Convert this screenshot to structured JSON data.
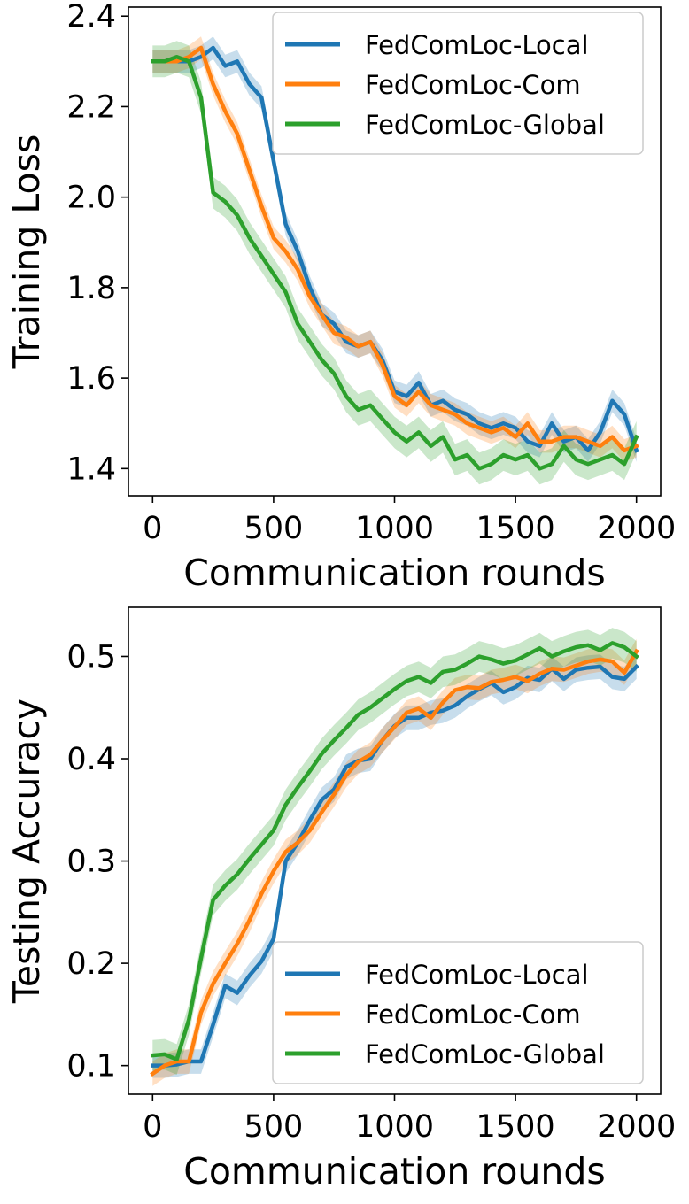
{
  "chart_data": [
    {
      "type": "line",
      "title": "",
      "xlabel": "Communication rounds",
      "ylabel": "Training Loss",
      "xlim": [
        -100,
        2100
      ],
      "ylim": [
        1.34,
        2.42
      ],
      "xticks": [
        0,
        500,
        1000,
        1500,
        2000
      ],
      "xtick_labels": [
        "0",
        "500",
        "1000",
        "1500",
        "2000"
      ],
      "yticks": [
        1.4,
        1.6,
        1.8,
        2.0,
        2.2,
        2.4
      ],
      "ytick_labels": [
        "1.4",
        "1.6",
        "1.8",
        "2.0",
        "2.2",
        "2.4"
      ],
      "grid": false,
      "legend_position": "top-right",
      "series": [
        {
          "name": "FedComLoc-Local",
          "color": "#1f77b4",
          "band": 0.025,
          "x": [
            0,
            50,
            100,
            150,
            200,
            250,
            300,
            350,
            400,
            450,
            500,
            550,
            600,
            650,
            700,
            750,
            800,
            850,
            900,
            950,
            1000,
            1050,
            1100,
            1150,
            1200,
            1250,
            1300,
            1350,
            1400,
            1450,
            1500,
            1550,
            1600,
            1650,
            1700,
            1750,
            1800,
            1850,
            1900,
            1950,
            2000
          ],
          "y": [
            2.3,
            2.3,
            2.3,
            2.3,
            2.31,
            2.33,
            2.29,
            2.3,
            2.25,
            2.22,
            2.08,
            1.94,
            1.88,
            1.8,
            1.74,
            1.72,
            1.68,
            1.67,
            1.68,
            1.64,
            1.57,
            1.56,
            1.59,
            1.54,
            1.55,
            1.53,
            1.52,
            1.5,
            1.49,
            1.5,
            1.49,
            1.46,
            1.45,
            1.5,
            1.46,
            1.47,
            1.44,
            1.48,
            1.55,
            1.52,
            1.44
          ]
        },
        {
          "name": "FedComLoc-Com",
          "color": "#ff7f0e",
          "band": 0.025,
          "x": [
            0,
            50,
            100,
            150,
            200,
            250,
            300,
            350,
            400,
            450,
            500,
            550,
            600,
            650,
            700,
            750,
            800,
            850,
            900,
            950,
            1000,
            1050,
            1100,
            1150,
            1200,
            1250,
            1300,
            1350,
            1400,
            1450,
            1500,
            1550,
            1600,
            1650,
            1700,
            1750,
            1800,
            1850,
            1900,
            1950,
            2000
          ],
          "y": [
            2.3,
            2.3,
            2.3,
            2.31,
            2.33,
            2.25,
            2.19,
            2.14,
            2.06,
            1.98,
            1.91,
            1.88,
            1.84,
            1.78,
            1.74,
            1.7,
            1.69,
            1.67,
            1.68,
            1.63,
            1.56,
            1.54,
            1.57,
            1.54,
            1.53,
            1.52,
            1.5,
            1.49,
            1.48,
            1.49,
            1.47,
            1.5,
            1.46,
            1.46,
            1.47,
            1.47,
            1.46,
            1.45,
            1.47,
            1.44,
            1.45
          ]
        },
        {
          "name": "FedComLoc-Global",
          "color": "#2ca02c",
          "band": 0.035,
          "x": [
            0,
            50,
            100,
            150,
            200,
            250,
            300,
            350,
            400,
            450,
            500,
            550,
            600,
            650,
            700,
            750,
            800,
            850,
            900,
            950,
            1000,
            1050,
            1100,
            1150,
            1200,
            1250,
            1300,
            1350,
            1400,
            1450,
            1500,
            1550,
            1600,
            1650,
            1700,
            1750,
            1800,
            1850,
            1900,
            1950,
            2000
          ],
          "y": [
            2.3,
            2.3,
            2.31,
            2.3,
            2.22,
            2.01,
            1.99,
            1.96,
            1.91,
            1.87,
            1.83,
            1.79,
            1.72,
            1.68,
            1.64,
            1.61,
            1.56,
            1.53,
            1.54,
            1.51,
            1.48,
            1.46,
            1.48,
            1.45,
            1.47,
            1.42,
            1.43,
            1.4,
            1.41,
            1.43,
            1.42,
            1.43,
            1.4,
            1.41,
            1.45,
            1.42,
            1.41,
            1.42,
            1.43,
            1.41,
            1.47
          ]
        }
      ]
    },
    {
      "type": "line",
      "title": "",
      "xlabel": "Communication rounds",
      "ylabel": "Testing Accuracy",
      "xlim": [
        -100,
        2100
      ],
      "ylim": [
        0.072,
        0.548
      ],
      "xticks": [
        0,
        500,
        1000,
        1500,
        2000
      ],
      "xtick_labels": [
        "0",
        "500",
        "1000",
        "1500",
        "2000"
      ],
      "yticks": [
        0.1,
        0.2,
        0.3,
        0.4,
        0.5
      ],
      "ytick_labels": [
        "0.1",
        "0.2",
        "0.3",
        "0.4",
        "0.5"
      ],
      "grid": false,
      "legend_position": "bottom-right",
      "series": [
        {
          "name": "FedComLoc-Local",
          "color": "#1f77b4",
          "band": 0.012,
          "x": [
            0,
            50,
            100,
            150,
            200,
            250,
            300,
            350,
            400,
            450,
            500,
            550,
            600,
            650,
            700,
            750,
            800,
            850,
            900,
            950,
            1000,
            1050,
            1100,
            1150,
            1200,
            1250,
            1300,
            1350,
            1400,
            1450,
            1500,
            1550,
            1600,
            1650,
            1700,
            1750,
            1800,
            1850,
            1900,
            1950,
            2000
          ],
          "y": [
            0.1,
            0.1,
            0.101,
            0.104,
            0.104,
            0.14,
            0.178,
            0.171,
            0.188,
            0.202,
            0.224,
            0.3,
            0.318,
            0.34,
            0.36,
            0.37,
            0.392,
            0.398,
            0.4,
            0.418,
            0.432,
            0.44,
            0.44,
            0.445,
            0.447,
            0.452,
            0.461,
            0.468,
            0.474,
            0.465,
            0.47,
            0.479,
            0.477,
            0.488,
            0.478,
            0.487,
            0.489,
            0.49,
            0.48,
            0.478,
            0.49
          ]
        },
        {
          "name": "FedComLoc-Com",
          "color": "#ff7f0e",
          "band": 0.012,
          "x": [
            0,
            50,
            100,
            150,
            200,
            250,
            300,
            350,
            400,
            450,
            500,
            550,
            600,
            650,
            700,
            750,
            800,
            850,
            900,
            950,
            1000,
            1050,
            1100,
            1150,
            1200,
            1250,
            1300,
            1350,
            1400,
            1450,
            1500,
            1550,
            1600,
            1650,
            1700,
            1750,
            1800,
            1850,
            1900,
            1950,
            2000
          ],
          "y": [
            0.092,
            0.1,
            0.104,
            0.104,
            0.152,
            0.18,
            0.2,
            0.219,
            0.242,
            0.268,
            0.29,
            0.309,
            0.318,
            0.33,
            0.348,
            0.365,
            0.384,
            0.397,
            0.404,
            0.418,
            0.431,
            0.445,
            0.449,
            0.44,
            0.455,
            0.467,
            0.47,
            0.469,
            0.475,
            0.477,
            0.48,
            0.476,
            0.483,
            0.488,
            0.487,
            0.491,
            0.495,
            0.497,
            0.495,
            0.484,
            0.505
          ]
        },
        {
          "name": "FedComLoc-Global",
          "color": "#2ca02c",
          "band": 0.015,
          "x": [
            0,
            50,
            100,
            150,
            200,
            250,
            300,
            350,
            400,
            450,
            500,
            550,
            600,
            650,
            700,
            750,
            800,
            850,
            900,
            950,
            1000,
            1050,
            1100,
            1150,
            1200,
            1250,
            1300,
            1350,
            1400,
            1450,
            1500,
            1550,
            1600,
            1650,
            1700,
            1750,
            1800,
            1850,
            1900,
            1950,
            2000
          ],
          "y": [
            0.11,
            0.111,
            0.106,
            0.145,
            0.205,
            0.262,
            0.276,
            0.287,
            0.302,
            0.316,
            0.33,
            0.355,
            0.372,
            0.388,
            0.405,
            0.418,
            0.43,
            0.443,
            0.45,
            0.459,
            0.468,
            0.476,
            0.48,
            0.474,
            0.485,
            0.487,
            0.493,
            0.5,
            0.497,
            0.493,
            0.496,
            0.502,
            0.508,
            0.5,
            0.505,
            0.509,
            0.511,
            0.506,
            0.513,
            0.509,
            0.5
          ]
        }
      ]
    }
  ]
}
